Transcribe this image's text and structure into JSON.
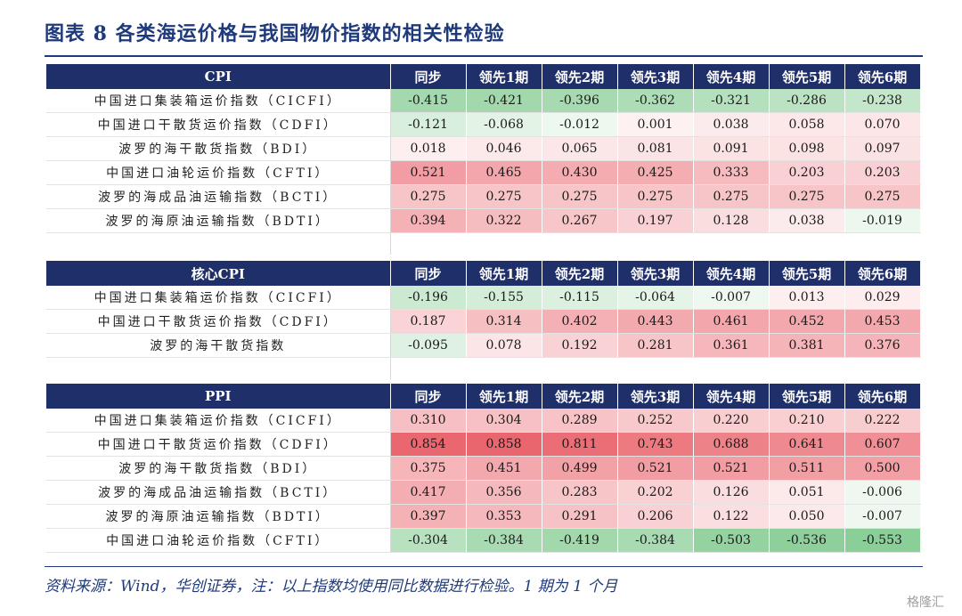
{
  "title": "图表 8 各类海运价格与我国物价指数的相关性检验",
  "columns": [
    "同步",
    "领先1期",
    "领先2期",
    "领先3期",
    "领先4期",
    "领先5期",
    "领先6期"
  ],
  "sections": [
    {
      "header": "CPI",
      "rows": [
        {
          "name": "中国进口集装箱运价指数（CICFI）",
          "values": [
            "-0.415",
            "-0.421",
            "-0.396",
            "-0.362",
            "-0.321",
            "-0.286",
            "-0.238"
          ]
        },
        {
          "name": "中国进口干散货运价指数（CDFI）",
          "values": [
            "-0.121",
            "-0.068",
            "-0.012",
            "0.001",
            "0.038",
            "0.058",
            "0.070"
          ]
        },
        {
          "name": "波罗的海干散货指数（BDI）",
          "values": [
            "0.018",
            "0.046",
            "0.065",
            "0.081",
            "0.091",
            "0.098",
            "0.097"
          ]
        },
        {
          "name": "中国进口油轮运价指数（CFTI）",
          "values": [
            "0.521",
            "0.465",
            "0.430",
            "0.425",
            "0.333",
            "0.203",
            "0.203"
          ]
        },
        {
          "name": "波罗的海成品油运输指数（BCTI）",
          "values": [
            "0.275",
            "0.275",
            "0.275",
            "0.275",
            "0.275",
            "0.275",
            "0.275"
          ]
        },
        {
          "name": "波罗的海原油运输指数（BDTI）",
          "values": [
            "0.394",
            "0.322",
            "0.267",
            "0.197",
            "0.128",
            "0.038",
            "-0.019"
          ]
        }
      ]
    },
    {
      "header": "核心CPI",
      "rows": [
        {
          "name": "中国进口集装箱运价指数（CICFI）",
          "values": [
            "-0.196",
            "-0.155",
            "-0.115",
            "-0.064",
            "-0.007",
            "0.013",
            "0.029"
          ]
        },
        {
          "name": "中国进口干散货运价指数（CDFI）",
          "values": [
            "0.187",
            "0.314",
            "0.402",
            "0.443",
            "0.461",
            "0.452",
            "0.453"
          ]
        },
        {
          "name": "波罗的海干散货指数",
          "values": [
            "-0.095",
            "0.078",
            "0.192",
            "0.281",
            "0.361",
            "0.381",
            "0.376"
          ]
        }
      ]
    },
    {
      "header": "PPI",
      "rows": [
        {
          "name": "中国进口集装箱运价指数（CICFI）",
          "values": [
            "0.310",
            "0.304",
            "0.289",
            "0.252",
            "0.220",
            "0.210",
            "0.222"
          ]
        },
        {
          "name": "中国进口干散货运价指数（CDFI）",
          "values": [
            "0.854",
            "0.858",
            "0.811",
            "0.743",
            "0.688",
            "0.641",
            "0.607"
          ]
        },
        {
          "name": "波罗的海干散货指数（BDI）",
          "values": [
            "0.375",
            "0.451",
            "0.499",
            "0.521",
            "0.521",
            "0.511",
            "0.500"
          ]
        },
        {
          "name": "波罗的海成品油运输指数（BCTI）",
          "values": [
            "0.417",
            "0.356",
            "0.283",
            "0.202",
            "0.126",
            "0.051",
            "-0.006"
          ]
        },
        {
          "name": "波罗的海原油运输指数（BDTI）",
          "values": [
            "0.397",
            "0.353",
            "0.291",
            "0.206",
            "0.122",
            "0.050",
            "-0.007"
          ]
        },
        {
          "name": "中国进口油轮运价指数（CFTI）",
          "values": [
            "-0.304",
            "-0.384",
            "-0.419",
            "-0.384",
            "-0.503",
            "-0.536",
            "-0.553"
          ]
        }
      ]
    }
  ],
  "footer": "资料来源：Wind，华创证券，注：以上指数均使用同比数据进行检验。1 期为 1 个月",
  "watermark": "格隆汇",
  "colors": {
    "header_bg": "#1f2f6a",
    "title": "#1f3a7a",
    "positive": "#e8555f",
    "negative": "#3fae55"
  }
}
